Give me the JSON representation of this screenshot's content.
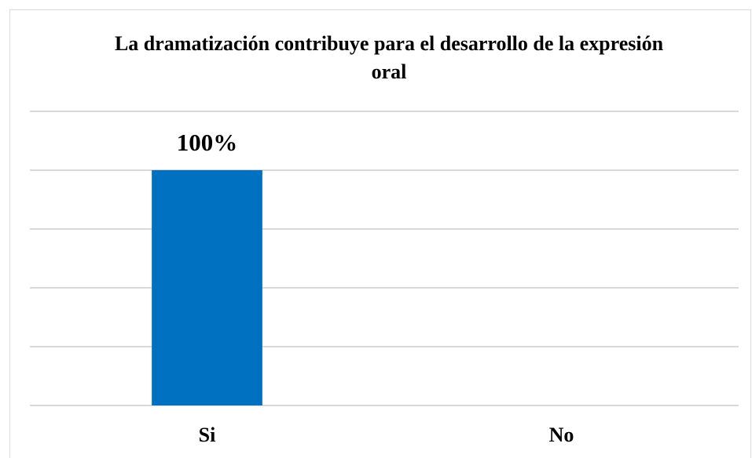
{
  "chart_data": {
    "type": "bar",
    "title": "La dramatización contribuye para el desarrollo de la expresión oral",
    "categories": [
      "Si",
      "No"
    ],
    "values": [
      100,
      0
    ],
    "value_labels": [
      "100%",
      null
    ],
    "color": "#0070c0",
    "ylim": [
      0,
      125
    ],
    "yticks": [
      0,
      25,
      50,
      75,
      100,
      125
    ],
    "grid": true
  }
}
